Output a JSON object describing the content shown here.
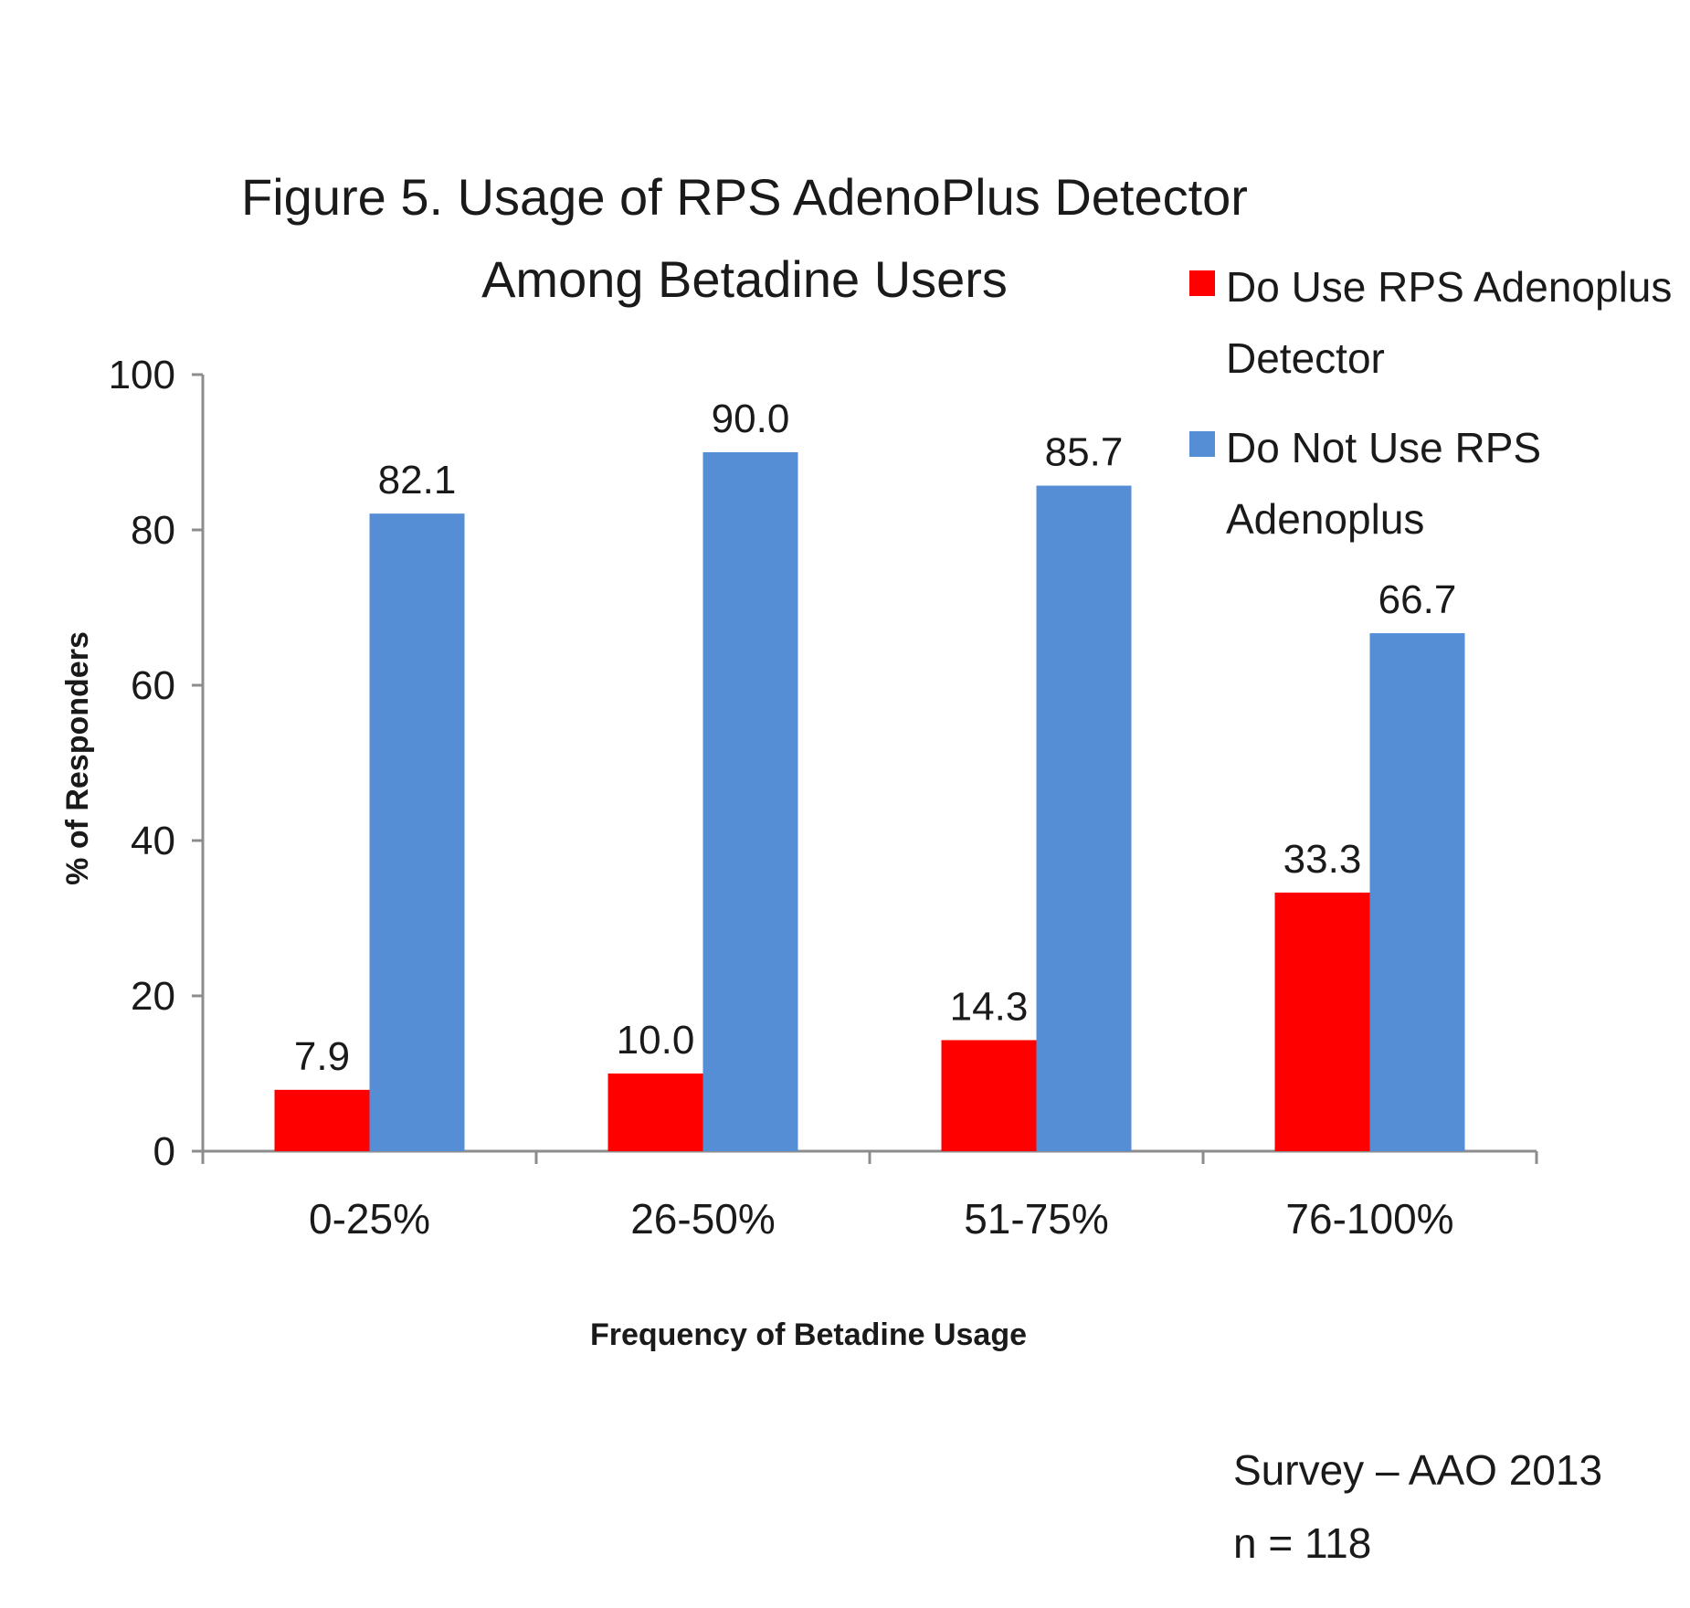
{
  "chart_data": {
    "type": "bar",
    "title": "Figure 5.  Usage of RPS AdenoPlus Detector",
    "subtitle": "Among Betadine Users",
    "xlabel": "Frequency of Betadine Usage",
    "ylabel": "% of Responders",
    "ylim": [
      0,
      100
    ],
    "yticks": [
      0,
      20,
      40,
      60,
      80,
      100
    ],
    "grid": false,
    "legend_position": "top-right",
    "categories": [
      "0-25%",
      "26-50%",
      "51-75%",
      "76-100%"
    ],
    "series": [
      {
        "name": "Do Use RPS Adenoplus Detector",
        "name_lines": [
          "Do Use RPS Adenoplus",
          "Detector"
        ],
        "color": "#ff0000",
        "values": [
          7.9,
          10.0,
          14.3,
          33.3
        ]
      },
      {
        "name": "Do Not Use RPS Adenoplus",
        "name_lines": [
          "Do Not Use RPS",
          "Adenoplus"
        ],
        "color": "#558ed5",
        "values": [
          82.1,
          90.0,
          85.7,
          66.7
        ]
      }
    ],
    "value_labels": [
      [
        "7.9",
        "10.0",
        "14.3",
        "33.3"
      ],
      [
        "82.1",
        "90.0",
        "85.7",
        "66.7"
      ]
    ],
    "annotations": [
      "Survey – AAO 2013",
      "n = 118"
    ]
  }
}
